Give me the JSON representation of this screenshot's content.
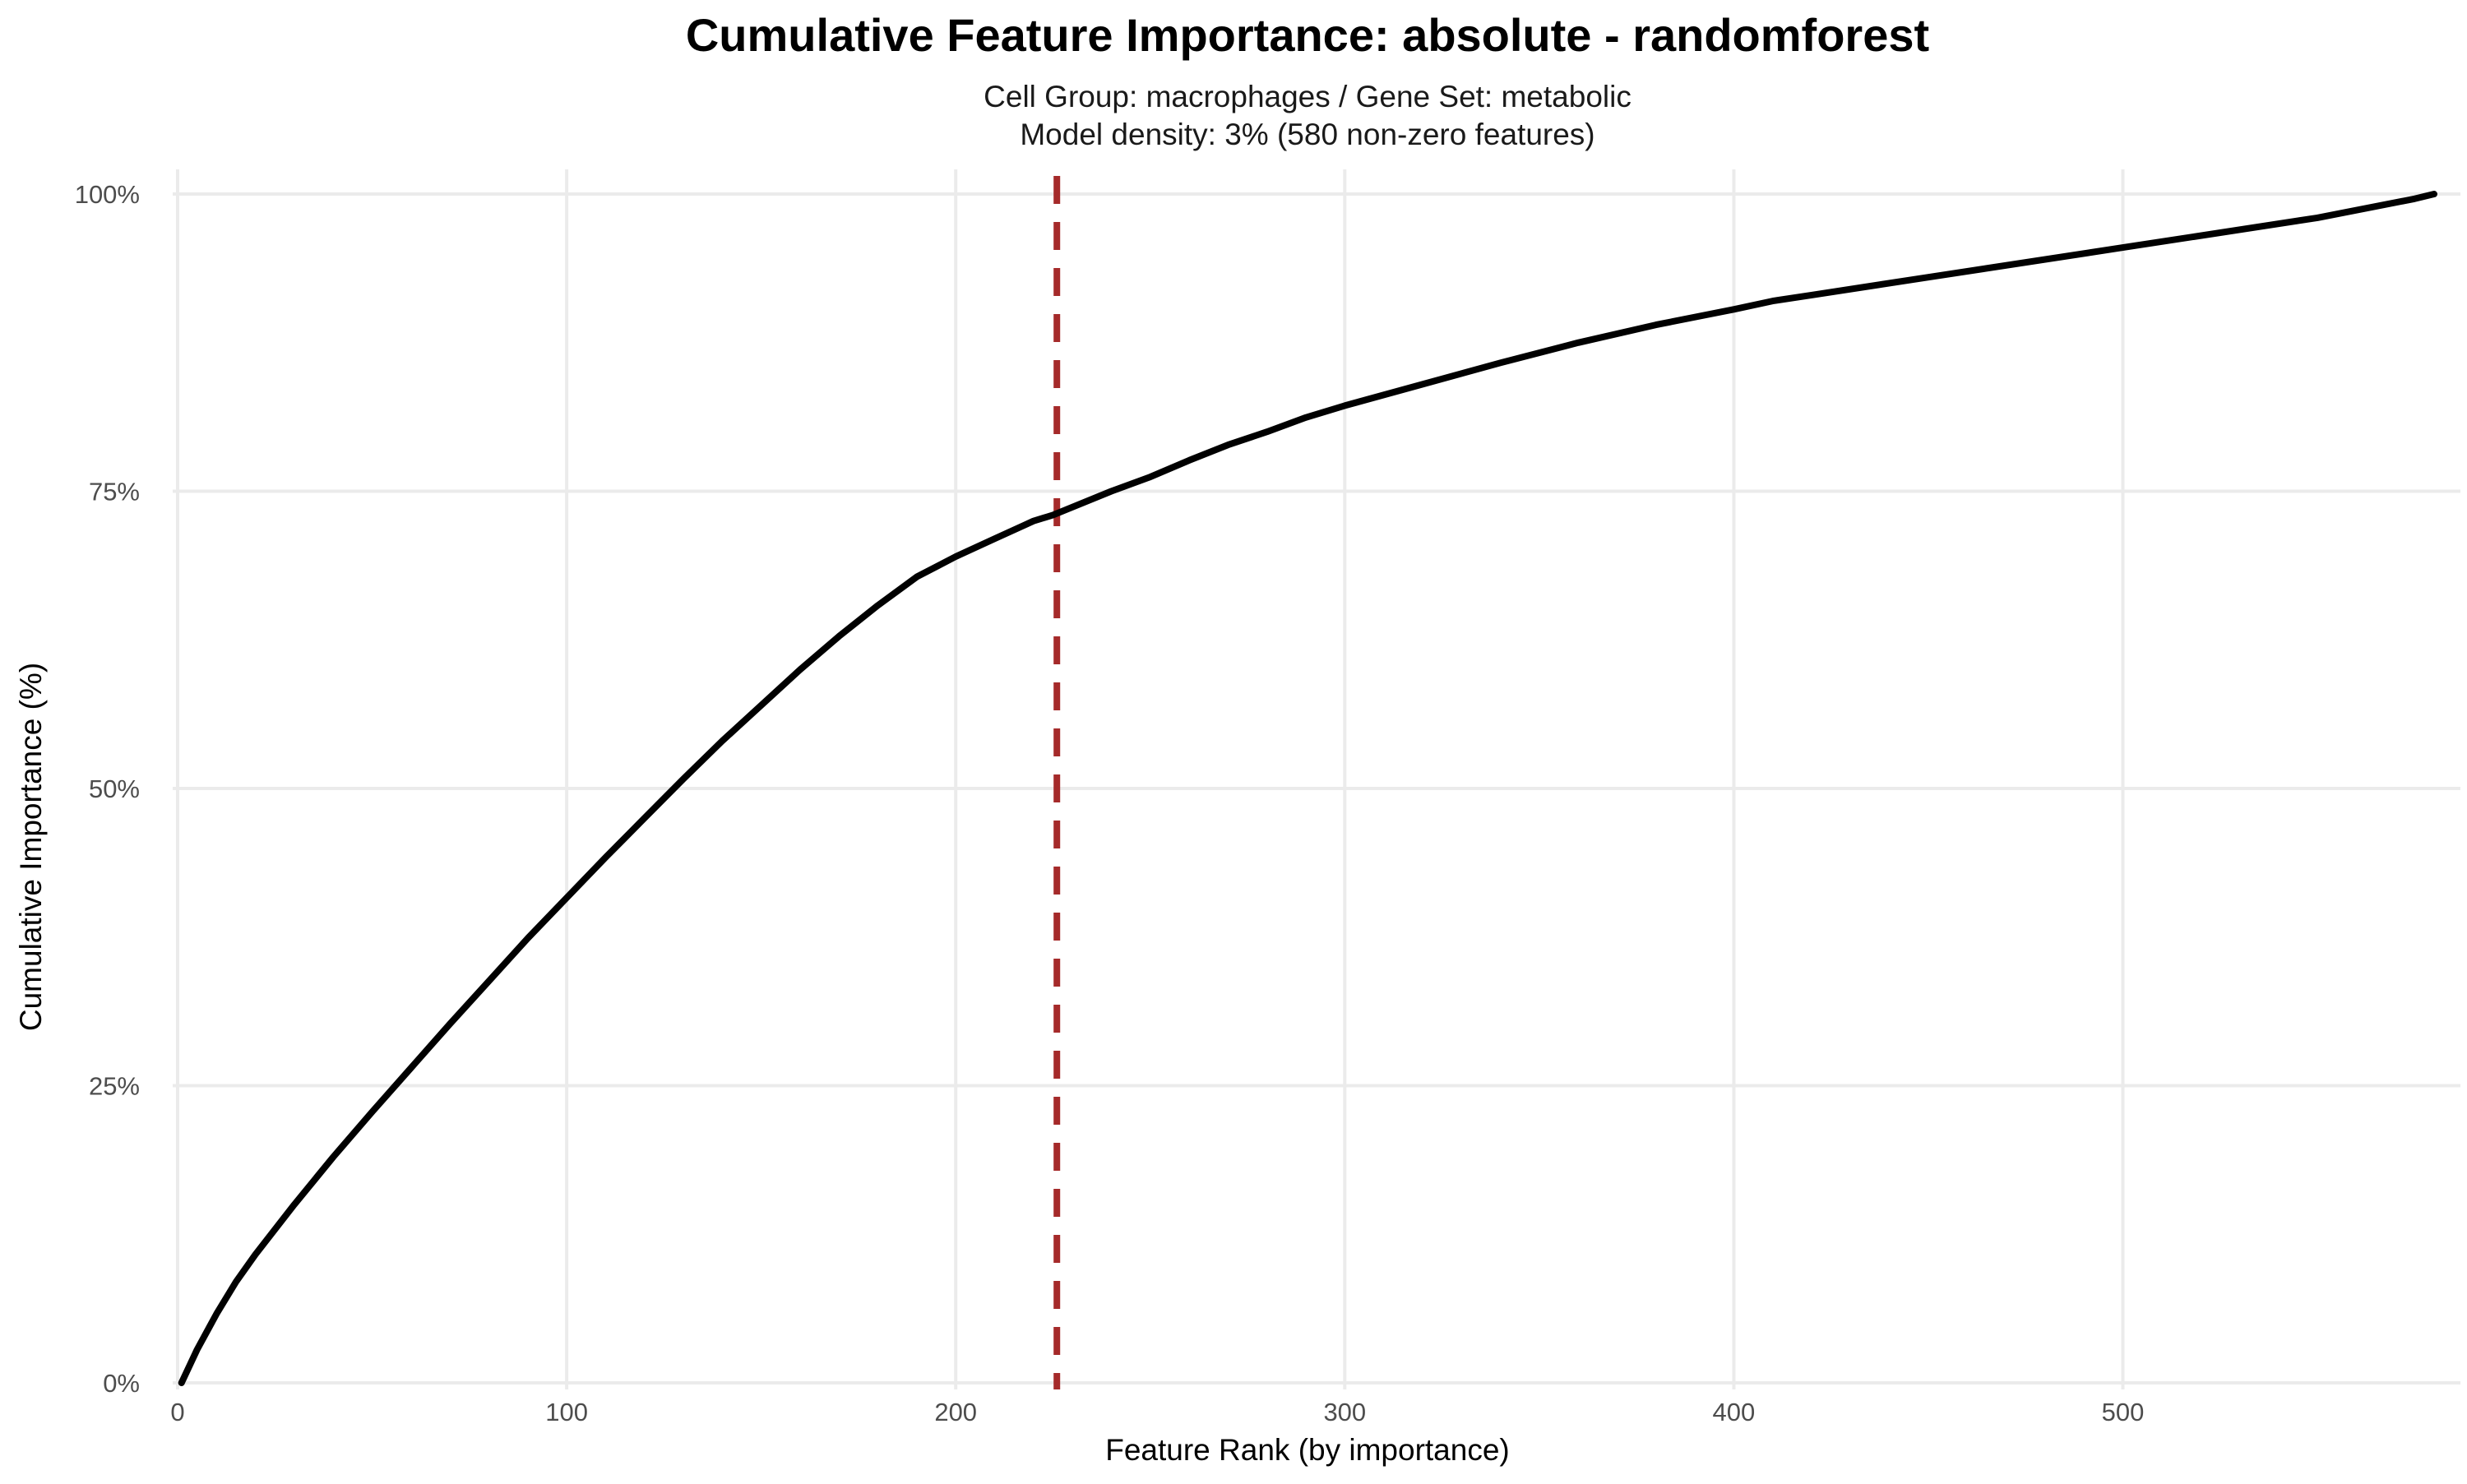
{
  "chart_data": {
    "type": "line",
    "title": "Cumulative Feature Importance: absolute - randomforest",
    "subtitle_lines": [
      "Cell Group: macrophages / Gene Set: metabolic",
      "Model density: 3% (580 non-zero features)"
    ],
    "xlabel": "Feature Rank (by importance)",
    "ylabel": "Cumulative Importance (%)",
    "xlim": [
      0,
      580
    ],
    "ylim": [
      0,
      100
    ],
    "x_ticks": [
      0,
      100,
      200,
      300,
      400,
      500
    ],
    "y_ticks": [
      0,
      25,
      50,
      75,
      100
    ],
    "y_tick_labels": [
      "0%",
      "25%",
      "50%",
      "75%",
      "100%"
    ],
    "grid": true,
    "series": [
      {
        "color": "#000000",
        "x": [
          1,
          5,
          10,
          15,
          20,
          30,
          40,
          50,
          60,
          70,
          80,
          90,
          100,
          110,
          120,
          130,
          140,
          150,
          160,
          170,
          180,
          190,
          200,
          210,
          220,
          225,
          240,
          250,
          260,
          270,
          280,
          290,
          300,
          320,
          340,
          360,
          380,
          400,
          410,
          420,
          450,
          500,
          550,
          575,
          580
        ],
        "y": [
          0,
          2.8,
          5.8,
          8.5,
          10.8,
          15.0,
          19.0,
          22.8,
          26.5,
          30.2,
          33.8,
          37.4,
          40.8,
          44.2,
          47.5,
          50.8,
          54.0,
          57.0,
          60.0,
          62.8,
          65.4,
          67.8,
          69.5,
          71.0,
          72.5,
          73.0,
          75.0,
          76.2,
          77.6,
          78.9,
          80.0,
          81.2,
          82.2,
          84.0,
          85.8,
          87.5,
          89.0,
          90.3,
          91.0,
          91.5,
          93.0,
          95.5,
          98.0,
          99.6,
          100
        ]
      }
    ],
    "reference_line": {
      "axis": "x",
      "value": 226,
      "style": "dashed",
      "color": "#a52a2a"
    }
  }
}
